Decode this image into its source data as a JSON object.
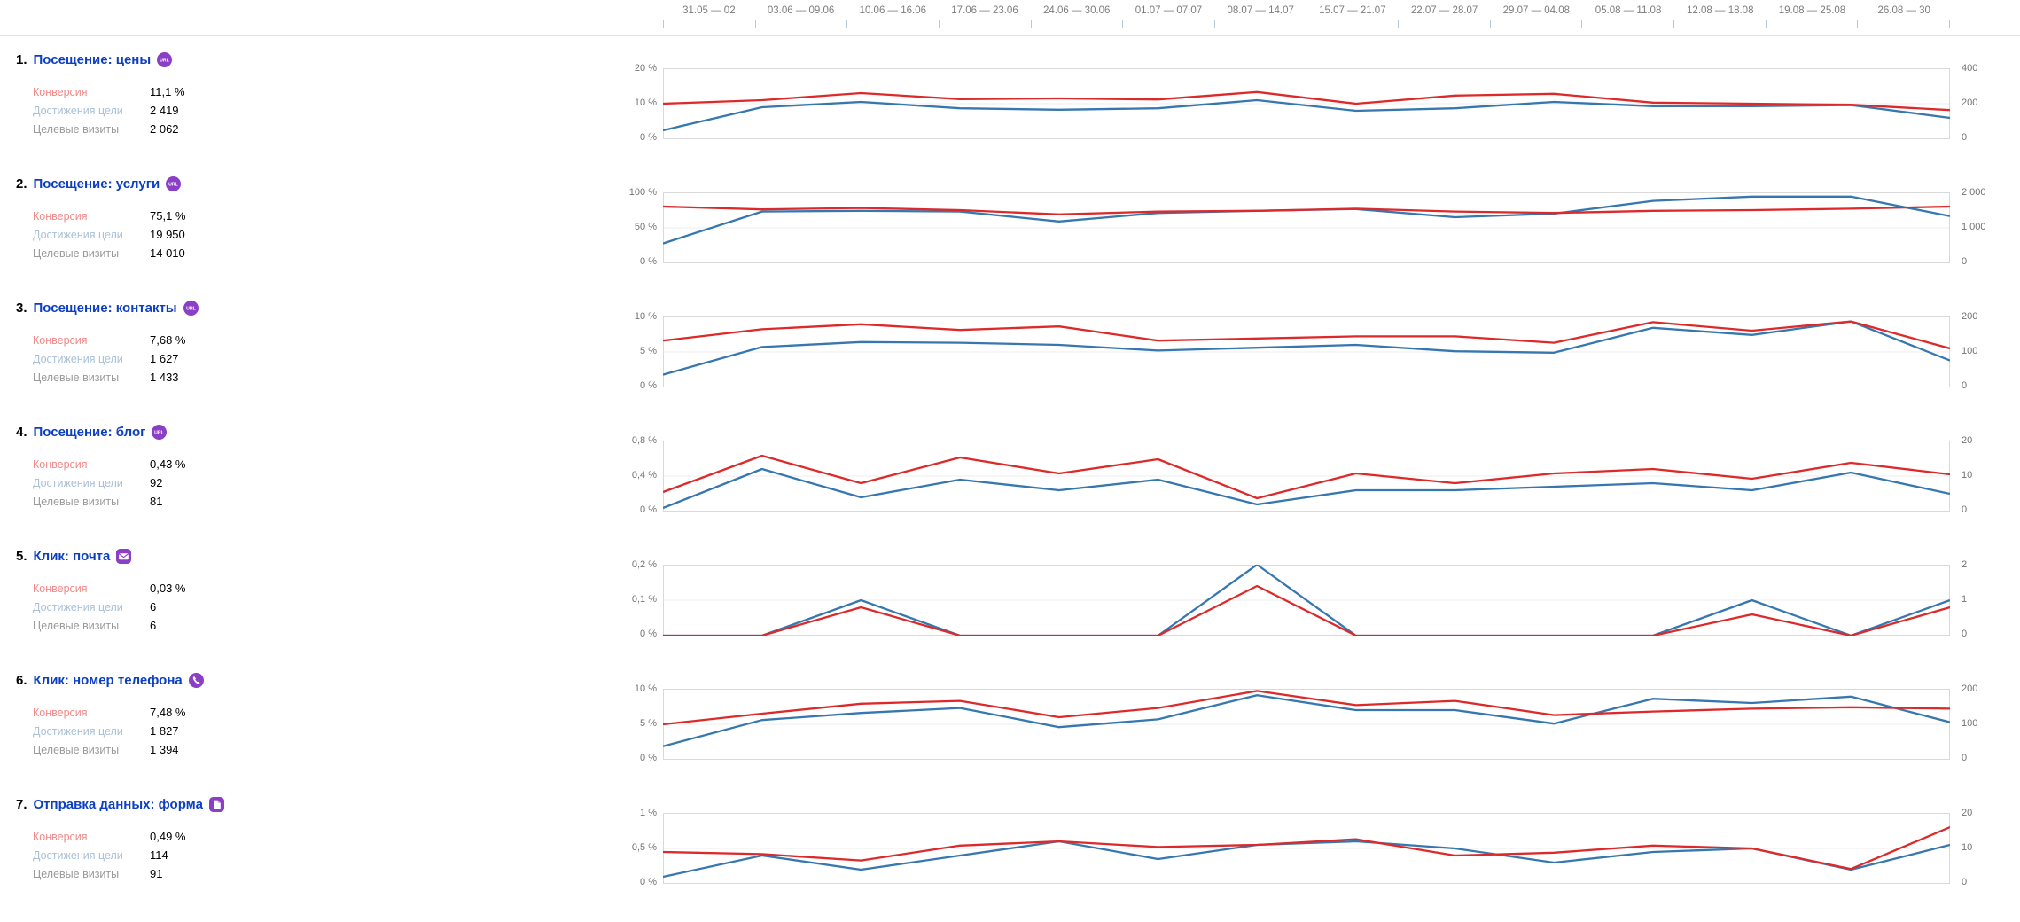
{
  "header": {
    "dates": [
      "31.05 — 02",
      "03.06 — 09.06",
      "10.06 — 16.06",
      "17.06 — 23.06",
      "24.06 — 30.06",
      "01.07 — 07.07",
      "08.07 — 14.07",
      "15.07 — 21.07",
      "22.07 — 28.07",
      "29.07 — 04.08",
      "05.08 — 11.08",
      "12.08 — 18.08",
      "19.08 — 25.08",
      "26.08 — 30"
    ]
  },
  "stat_labels": {
    "conversion": "Конверсия",
    "reaches": "Достижения цели",
    "visits": "Целевые визиты"
  },
  "colors": {
    "conversion_line": "#dc2a2a",
    "reaches_line": "#3677b0",
    "goal_link": "#0d3fc2",
    "badge_purple": "#8a3fc5",
    "grid": "#ededed",
    "plot_border": "#d9d9d9"
  },
  "goals": [
    {
      "index": "1.",
      "title": "Посещение: цены",
      "icon": "url",
      "conversion": "11,1 %",
      "reaches": "2 419",
      "visits": "2 062"
    },
    {
      "index": "2.",
      "title": "Посещение: услуги",
      "icon": "url",
      "conversion": "75,1 %",
      "reaches": "19 950",
      "visits": "14 010"
    },
    {
      "index": "3.",
      "title": "Посещение: контакты",
      "icon": "url",
      "conversion": "7,68 %",
      "reaches": "1 627",
      "visits": "1 433"
    },
    {
      "index": "4.",
      "title": "Посещение: блог",
      "icon": "url",
      "conversion": "0,43 %",
      "reaches": "92",
      "visits": "81"
    },
    {
      "index": "5.",
      "title": "Клик: почта",
      "icon": "mail",
      "conversion": "0,03 %",
      "reaches": "6",
      "visits": "6"
    },
    {
      "index": "6.",
      "title": "Клик: номер телефона",
      "icon": "phone",
      "conversion": "7,48 %",
      "reaches": "1 827",
      "visits": "1 394"
    },
    {
      "index": "7.",
      "title": "Отправка данных: форма",
      "icon": "form",
      "conversion": "0,49 %",
      "reaches": "114",
      "visits": "91"
    }
  ],
  "chart_data": [
    {
      "type": "line",
      "goal": "Посещение: цены",
      "x": [
        "31.05 — 02",
        "03.06 — 09.06",
        "10.06 — 16.06",
        "17.06 — 23.06",
        "24.06 — 30.06",
        "01.07 — 07.07",
        "08.07 — 14.07",
        "15.07 — 21.07",
        "22.07 — 28.07",
        "29.07 — 04.08",
        "05.08 — 11.08",
        "12.08 — 18.08",
        "19.08 — 25.08",
        "26.08 — 30"
      ],
      "left_axis": {
        "ticks": [
          "20 %",
          "10 %",
          "0 %"
        ],
        "max": 20,
        "unit": "%"
      },
      "right_axis": {
        "ticks": [
          "400",
          "200",
          "0"
        ],
        "max": 400,
        "unit": "count"
      },
      "series": [
        {
          "name": "Конверсия",
          "axis": "left",
          "color": "red",
          "values": [
            10,
            11,
            13,
            11.3,
            11.5,
            11.2,
            13.3,
            10,
            12.3,
            12.8,
            10.3,
            10,
            9.7,
            8.2
          ]
        },
        {
          "name": "Достижения цели",
          "axis": "right",
          "color": "blue",
          "values": [
            50,
            180,
            210,
            174,
            166,
            174,
            220,
            160,
            174,
            210,
            186,
            186,
            192,
            120
          ]
        }
      ]
    },
    {
      "type": "line",
      "goal": "Посещение: услуги",
      "x": [
        "31.05 — 02",
        "03.06 — 09.06",
        "10.06 — 16.06",
        "17.06 — 23.06",
        "24.06 — 30.06",
        "01.07 — 07.07",
        "08.07 — 14.07",
        "15.07 — 21.07",
        "22.07 — 28.07",
        "29.07 — 04.08",
        "05.08 — 11.08",
        "12.08 — 18.08",
        "19.08 — 25.08",
        "26.08 — 30"
      ],
      "left_axis": {
        "ticks": [
          "100 %",
          "50 %",
          "0 %"
        ],
        "max": 100,
        "unit": "%"
      },
      "right_axis": {
        "ticks": [
          "2 000",
          "1 000",
          "0"
        ],
        "max": 2000,
        "unit": "count"
      },
      "series": [
        {
          "name": "Конверсия",
          "axis": "left",
          "color": "red",
          "values": [
            80,
            76,
            78,
            75,
            69,
            73,
            74,
            77,
            73,
            71,
            74,
            75,
            77,
            80
          ]
        },
        {
          "name": "Достижения цели",
          "axis": "right",
          "color": "blue",
          "values": [
            560,
            1460,
            1480,
            1460,
            1180,
            1420,
            1480,
            1530,
            1300,
            1400,
            1760,
            1880,
            1880,
            1330
          ]
        }
      ]
    },
    {
      "type": "line",
      "goal": "Посещение: контакты",
      "x": [
        "31.05 — 02",
        "03.06 — 09.06",
        "10.06 — 16.06",
        "17.06 — 23.06",
        "24.06 — 30.06",
        "01.07 — 07.07",
        "08.07 — 14.07",
        "15.07 — 21.07",
        "22.07 — 28.07",
        "29.07 — 04.08",
        "05.08 — 11.08",
        "12.08 — 18.08",
        "19.08 — 25.08",
        "26.08 — 30"
      ],
      "left_axis": {
        "ticks": [
          "10 %",
          "5 %",
          "0 %"
        ],
        "max": 10,
        "unit": "%"
      },
      "right_axis": {
        "ticks": [
          "200",
          "100",
          "0"
        ],
        "max": 200,
        "unit": "count"
      },
      "series": [
        {
          "name": "Конверсия",
          "axis": "left",
          "color": "red",
          "values": [
            6.6,
            8.2,
            8.9,
            8.1,
            8.6,
            6.6,
            6.9,
            7.2,
            7.2,
            6.3,
            9.2,
            8.0,
            9.3,
            5.5
          ]
        },
        {
          "name": "Достижения цели",
          "axis": "right",
          "color": "blue",
          "values": [
            36,
            114,
            128,
            126,
            120,
            104,
            112,
            120,
            102,
            98,
            168,
            148,
            186,
            76
          ]
        }
      ]
    },
    {
      "type": "line",
      "goal": "Посещение: блог",
      "x": [
        "31.05 — 02",
        "03.06 — 09.06",
        "10.06 — 16.06",
        "17.06 — 23.06",
        "24.06 — 30.06",
        "01.07 — 07.07",
        "08.07 — 14.07",
        "15.07 — 21.07",
        "22.07 — 28.07",
        "29.07 — 04.08",
        "05.08 — 11.08",
        "12.08 — 18.08",
        "19.08 — 25.08",
        "26.08 — 30"
      ],
      "left_axis": {
        "ticks": [
          "0,8 %",
          "0,4 %",
          "0 %"
        ],
        "max": 0.8,
        "unit": "%"
      },
      "right_axis": {
        "ticks": [
          "20",
          "10",
          "0"
        ],
        "max": 20,
        "unit": "count"
      },
      "series": [
        {
          "name": "Конверсия",
          "axis": "left",
          "color": "red",
          "values": [
            0.22,
            0.63,
            0.32,
            0.61,
            0.43,
            0.59,
            0.15,
            0.43,
            0.32,
            0.43,
            0.48,
            0.37,
            0.55,
            0.42
          ]
        },
        {
          "name": "Достижения цели",
          "axis": "right",
          "color": "blue",
          "values": [
            1,
            12,
            4,
            9,
            6,
            9,
            2,
            6,
            6,
            7,
            8,
            6,
            11,
            5
          ]
        }
      ]
    },
    {
      "type": "line",
      "goal": "Клик: почта",
      "x": [
        "31.05 — 02",
        "03.06 — 09.06",
        "10.06 — 16.06",
        "17.06 — 23.06",
        "24.06 — 30.06",
        "01.07 — 07.07",
        "08.07 — 14.07",
        "15.07 — 21.07",
        "22.07 — 28.07",
        "29.07 — 04.08",
        "05.08 — 11.08",
        "12.08 — 18.08",
        "19.08 — 25.08",
        "26.08 — 30"
      ],
      "left_axis": {
        "ticks": [
          "0,2 %",
          "0,1 %",
          "0 %"
        ],
        "max": 0.2,
        "unit": "%"
      },
      "right_axis": {
        "ticks": [
          "2",
          "1",
          "0"
        ],
        "max": 2,
        "unit": "count"
      },
      "series": [
        {
          "name": "Конверсия",
          "axis": "left",
          "color": "red",
          "values": [
            0,
            0,
            0.08,
            0,
            0,
            0,
            0.14,
            0,
            0,
            0,
            0,
            0.06,
            0,
            0.08
          ]
        },
        {
          "name": "Достижения цели",
          "axis": "right",
          "color": "blue",
          "values": [
            0,
            0,
            1,
            0,
            0,
            0,
            2,
            0,
            0,
            0,
            0,
            1,
            0,
            1
          ]
        }
      ]
    },
    {
      "type": "line",
      "goal": "Клик: номер телефона",
      "x": [
        "31.05 — 02",
        "03.06 — 09.06",
        "10.06 — 16.06",
        "17.06 — 23.06",
        "24.06 — 30.06",
        "01.07 — 07.07",
        "08.07 — 14.07",
        "15.07 — 21.07",
        "22.07 — 28.07",
        "29.07 — 04.08",
        "05.08 — 11.08",
        "12.08 — 18.08",
        "19.08 — 25.08",
        "26.08 — 30"
      ],
      "left_axis": {
        "ticks": [
          "10 %",
          "5 %",
          "0 %"
        ],
        "max": 10,
        "unit": "%"
      },
      "right_axis": {
        "ticks": [
          "200",
          "100",
          "0"
        ],
        "max": 200,
        "unit": "count"
      },
      "series": [
        {
          "name": "Конверсия",
          "axis": "left",
          "color": "red",
          "values": [
            5.0,
            6.5,
            7.9,
            8.3,
            6.0,
            7.3,
            9.7,
            7.7,
            8.3,
            6.3,
            6.8,
            7.2,
            7.4,
            7.2
          ]
        },
        {
          "name": "Достижения цели",
          "axis": "right",
          "color": "blue",
          "values": [
            38,
            112,
            132,
            146,
            92,
            114,
            182,
            140,
            140,
            102,
            172,
            160,
            178,
            106
          ]
        }
      ]
    },
    {
      "type": "line",
      "goal": "Отправка данных: форма",
      "x": [
        "31.05 — 02",
        "03.06 — 09.06",
        "10.06 — 16.06",
        "17.06 — 23.06",
        "24.06 — 30.06",
        "01.07 — 07.07",
        "08.07 — 14.07",
        "15.07 — 21.07",
        "22.07 — 28.07",
        "29.07 — 04.08",
        "05.08 — 11.08",
        "12.08 — 18.08",
        "19.08 — 25.08",
        "26.08 — 30"
      ],
      "left_axis": {
        "ticks": [
          "1 %",
          "0,5 %",
          "0 %"
        ],
        "max": 1,
        "unit": "%"
      },
      "right_axis": {
        "ticks": [
          "20",
          "10",
          "0"
        ],
        "max": 20,
        "unit": "count"
      },
      "series": [
        {
          "name": "Конверсия",
          "axis": "left",
          "color": "red",
          "values": [
            0.45,
            0.42,
            0.33,
            0.54,
            0.6,
            0.52,
            0.55,
            0.63,
            0.4,
            0.44,
            0.54,
            0.5,
            0.21,
            0.8
          ]
        },
        {
          "name": "Достижения цели",
          "axis": "right",
          "color": "blue",
          "values": [
            0.09,
            0.41,
            0.2,
            0.4,
            0.6,
            0.35,
            0.55,
            0.6,
            0.52,
            0.3,
            0.45,
            0.5,
            0.2,
            0.55
          ],
          "values_note": "plotted on right axis as counts",
          "values_counts": [
            2,
            8,
            4,
            8,
            12,
            7,
            11,
            12,
            10,
            6,
            9,
            10,
            4,
            11
          ]
        }
      ]
    }
  ]
}
